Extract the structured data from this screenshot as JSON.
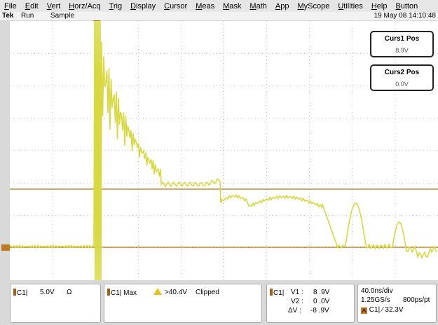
{
  "menu": [
    "File",
    "Edit",
    "Vert",
    "Horz/Acq",
    "Trig",
    "Display",
    "Cursor",
    "Meas",
    "Mask",
    "Math",
    "App",
    "MyScope",
    "Utilities",
    "Help",
    "Button"
  ],
  "status": {
    "brand": "Tek",
    "run_state": "Run",
    "acq_mode": "Sample",
    "datetime": "19 May 08 14:10:48"
  },
  "cursors": [
    {
      "title": "Curs1 Pos",
      "value": "8.9V"
    },
    {
      "title": "Curs2 Pos",
      "value": "0.0V"
    }
  ],
  "channel_readout": {
    "channel": "C1",
    "scale": "5.0V",
    "coupling": "Ω"
  },
  "max_readout": {
    "label": "C1| Max",
    "value": ">40.4V",
    "note": "Clipped"
  },
  "cursor_readout": {
    "channel": "C1",
    "v1_label": "V1 :",
    "v1": "8 .9V",
    "v2_label": "V2 :",
    "v2": "0 .0V",
    "dv_label": "ΔV :",
    "dv": "-8 .9V"
  },
  "timebase": {
    "time_div": "40.0ns/div",
    "sample_rate": "1.25GS/s",
    "record": "800ps/pt",
    "trigger": "C1| ∕ 32.3V",
    "trigger_src": "A"
  },
  "colors": {
    "trace": "#d8d840",
    "cursor_line": "#b07818",
    "grid": "#a0a0a0"
  }
}
